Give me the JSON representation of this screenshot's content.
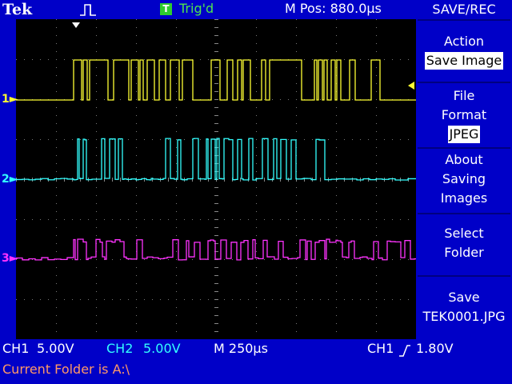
{
  "header": {
    "brand": "Tek",
    "trigger_badge": "T",
    "trigger_status": "Trig'd",
    "position": "M Pos: 880.0µs"
  },
  "menu": {
    "title": "SAVE/REC",
    "action": {
      "label": "Action",
      "value": "Save Image"
    },
    "file_format": {
      "line1": "File",
      "line2": "Format",
      "value": "JPEG"
    },
    "about": {
      "line1": "About",
      "line2": "Saving",
      "line3": "Images"
    },
    "select_folder": {
      "line1": "Select",
      "line2": "Folder"
    },
    "save": {
      "line1": "Save",
      "line2": "TEK0001.JPG"
    }
  },
  "channels": [
    {
      "label": "1",
      "color": "#ffff33"
    },
    {
      "label": "2",
      "color": "#33ffff"
    },
    {
      "label": "3",
      "color": "#ff33ff"
    }
  ],
  "status": {
    "ch1_name": "CH1",
    "ch1_scale": "5.00V",
    "ch2_name": "CH2",
    "ch2_scale": "5.00V",
    "timebase": "M 250µs",
    "trigger_source": "CH1",
    "trigger_slope_icon": "rising-edge-icon",
    "trigger_level": "1.80V"
  },
  "footer": {
    "message": "Current Folder is A:\\"
  }
}
